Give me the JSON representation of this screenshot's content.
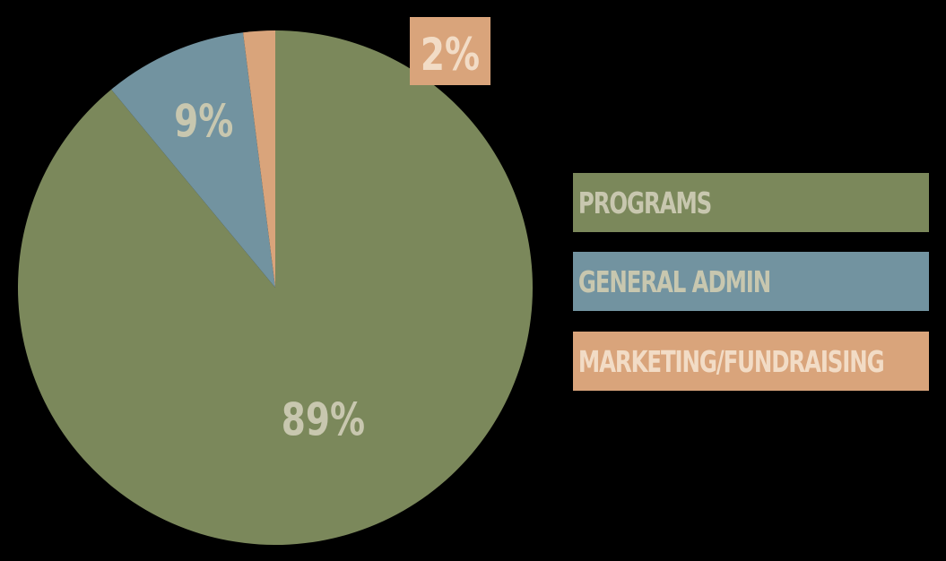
{
  "chart_data": {
    "type": "pie",
    "title": "",
    "categories": [
      "PROGRAMS",
      "GENERAL ADMIN",
      "MARKETING/FUNDRAISING"
    ],
    "values": [
      89,
      9,
      2
    ],
    "value_labels": [
      "89%",
      "9%",
      "2%"
    ],
    "colors": [
      "#7b885b",
      "#7293a0",
      "#d9a47b"
    ],
    "label_colors": [
      "#c8c7af",
      "#c8c7af",
      "#f2dcc6"
    ],
    "legend_text_colors": [
      "#c8c7af",
      "#c8c7af",
      "#f2dcc6"
    ],
    "background": "#000000",
    "legend_position": "right",
    "start_angle_deg": 0,
    "direction": "clockwise"
  }
}
